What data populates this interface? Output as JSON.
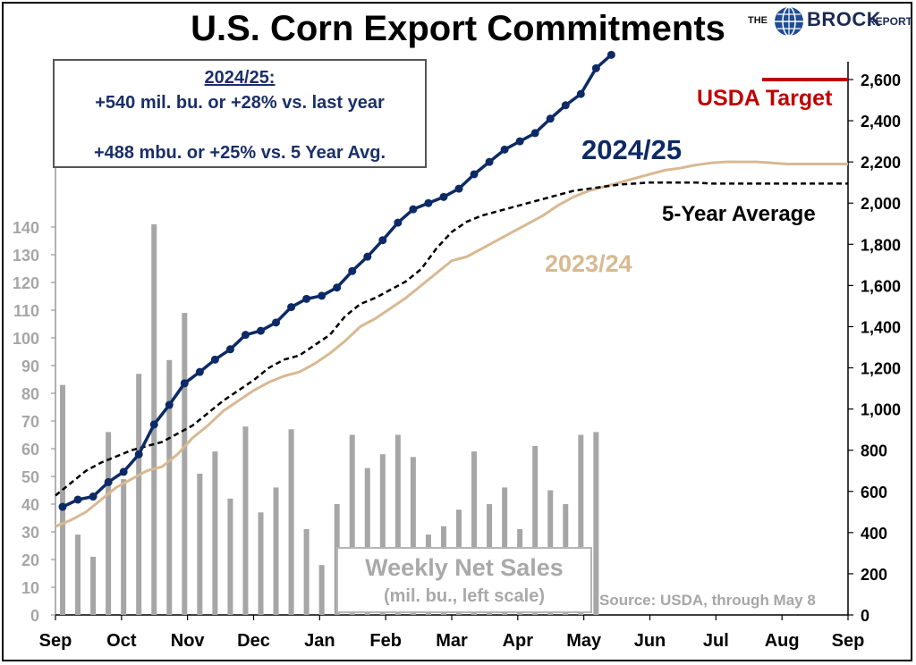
{
  "title": "U.S. Corn Export Commitments",
  "logo": {
    "the": "THE",
    "brock": "BROCK",
    "report": "REPORT"
  },
  "info": {
    "heading": "2024/25:",
    "line1": "+540 mil. bu. or +28% vs. last year",
    "line2": "+488 mbu. or +25% vs. 5 Year Avg."
  },
  "labels": {
    "series_2425": "2024/25",
    "series_5yr": "5-Year Average",
    "series_2324": "2023/24",
    "usda_target": "USDA Target",
    "weekly_title": "Weekly Net Sales",
    "weekly_sub": "(mil. bu., left scale)",
    "source": "Source: USDA, through May 8"
  },
  "colors": {
    "series_2425": "#0d2a66",
    "series_5yr": "#000000",
    "series_2324": "#d8b992",
    "usda_target": "#c00000",
    "bars": "#a6a6a6"
  },
  "chart_data": {
    "type": "line",
    "x_axis": {
      "tick_labels": [
        "Sep",
        "Oct",
        "Nov",
        "Dec",
        "Jan",
        "Feb",
        "Mar",
        "Apr",
        "May",
        "Jun",
        "Jul",
        "Aug",
        "Sep"
      ]
    },
    "left_axis": {
      "label": "",
      "ylim": [
        0,
        140
      ],
      "ticks": [
        0,
        10,
        20,
        30,
        40,
        50,
        60,
        70,
        80,
        90,
        100,
        110,
        120,
        130,
        140
      ]
    },
    "right_axis": {
      "label": "",
      "ylim": [
        0,
        2600
      ],
      "ticks": [
        "0",
        "200",
        "400",
        "600",
        "800",
        "1,000",
        "1,200",
        "1,400",
        "1,600",
        "1,800",
        "2,000",
        "2,200",
        "2,400",
        "2,600"
      ]
    },
    "weekly_net_sales": {
      "name": "Weekly Net Sales",
      "axis": "left",
      "values": [
        83,
        29,
        21,
        66,
        49,
        87,
        141,
        92,
        109,
        51,
        59,
        42,
        68,
        37,
        46,
        67,
        31,
        18,
        40,
        65,
        53,
        58,
        65,
        57,
        29,
        32,
        38,
        59,
        40,
        46,
        31,
        61,
        45,
        40,
        65,
        66
      ]
    },
    "series": [
      {
        "name": "2024/25",
        "axis": "right",
        "values": [
          525,
          560,
          575,
          645,
          695,
          780,
          925,
          1020,
          1125,
          1180,
          1240,
          1290,
          1360,
          1380,
          1420,
          1495,
          1535,
          1550,
          1590,
          1670,
          1740,
          1820,
          1905,
          1970,
          2000,
          2030,
          2070,
          2140,
          2200,
          2260,
          2300,
          2340,
          2410,
          2475,
          2530,
          2655,
          2720
        ]
      },
      {
        "name": "5-Year Average",
        "axis": "right",
        "weekly": true,
        "values": [
          580,
          640,
          700,
          740,
          770,
          800,
          820,
          840,
          880,
          920,
          980,
          1040,
          1090,
          1140,
          1200,
          1240,
          1260,
          1310,
          1360,
          1450,
          1510,
          1540,
          1580,
          1620,
          1680,
          1780,
          1860,
          1910,
          1940,
          1960,
          1980,
          2000,
          2020,
          2040,
          2060,
          2070,
          2080,
          2090,
          2095,
          2100,
          2100,
          2100,
          2100,
          2095,
          2095,
          2095,
          2095,
          2095,
          2095,
          2095,
          2095,
          2095,
          2095
        ]
      },
      {
        "name": "2023/24",
        "axis": "right",
        "weekly": true,
        "values": [
          430,
          460,
          500,
          560,
          620,
          660,
          700,
          720,
          780,
          860,
          920,
          990,
          1040,
          1090,
          1130,
          1160,
          1180,
          1220,
          1270,
          1330,
          1400,
          1440,
          1490,
          1540,
          1600,
          1660,
          1720,
          1740,
          1780,
          1820,
          1860,
          1900,
          1940,
          1990,
          2030,
          2060,
          2080,
          2100,
          2120,
          2140,
          2160,
          2170,
          2185,
          2195,
          2200,
          2200,
          2200,
          2195,
          2190,
          2190,
          2190,
          2190,
          2190
        ]
      }
    ],
    "usda_target": {
      "name": "USDA Target",
      "value": 2600,
      "axis": "right"
    },
    "legend": "labels next to lines",
    "grid": false
  }
}
